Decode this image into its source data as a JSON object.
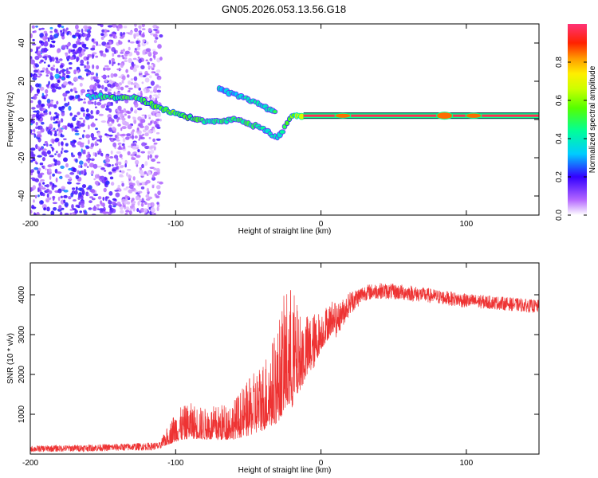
{
  "title": "GN05.2026.053.13.56.G18",
  "chart_data": [
    {
      "type": "heatmap",
      "title": "GN05.2026.053.13.56.G18",
      "xlabel": "Height of straight line (km)",
      "ylabel": "Frequency (Hz)",
      "xlim": [
        -200,
        150
      ],
      "ylim": [
        -50,
        50
      ],
      "xticks": [
        -200,
        -100,
        0,
        100
      ],
      "yticks": [
        -40,
        -20,
        0,
        20,
        40
      ],
      "colorbar": {
        "label": "Normalized spectral amplitude",
        "range": [
          0,
          1
        ],
        "ticks": [
          0.0,
          0.2,
          0.4,
          0.6,
          0.8
        ]
      },
      "noise_region": {
        "x_range": [
          -200,
          -110
        ],
        "y_range": [
          -50,
          50
        ],
        "amplitude": 0.15
      },
      "signal_track": [
        {
          "x": -160,
          "y": 12,
          "amp": 0.35
        },
        {
          "x": -150,
          "y": 12,
          "amp": 0.45
        },
        {
          "x": -140,
          "y": 11,
          "amp": 0.5
        },
        {
          "x": -130,
          "y": 12,
          "amp": 0.45
        },
        {
          "x": -120,
          "y": 9,
          "amp": 0.5
        },
        {
          "x": -110,
          "y": 6,
          "amp": 0.55
        },
        {
          "x": -100,
          "y": 3,
          "amp": 0.55
        },
        {
          "x": -90,
          "y": 1,
          "amp": 0.5
        },
        {
          "x": -80,
          "y": -1,
          "amp": 0.45
        },
        {
          "x": -70,
          "y": -1,
          "amp": 0.45
        },
        {
          "x": -60,
          "y": 0,
          "amp": 0.45
        },
        {
          "x": -50,
          "y": -2,
          "amp": 0.45
        },
        {
          "x": -40,
          "y": -5,
          "amp": 0.4
        },
        {
          "x": -30,
          "y": -10,
          "amp": 0.35
        },
        {
          "x": -20,
          "y": 2,
          "amp": 0.55
        },
        {
          "x": -10,
          "y": 2,
          "amp": 0.8
        },
        {
          "x": 0,
          "y": 2,
          "amp": 0.95
        },
        {
          "x": 50,
          "y": 2,
          "amp": 0.95
        },
        {
          "x": 90,
          "y": 2,
          "amp": 1.0
        },
        {
          "x": 150,
          "y": 2,
          "amp": 0.95
        }
      ],
      "secondary_track": [
        {
          "x": -70,
          "y": 16,
          "amp": 0.35
        },
        {
          "x": -55,
          "y": 12,
          "amp": 0.35
        },
        {
          "x": -40,
          "y": 7,
          "amp": 0.4
        },
        {
          "x": -30,
          "y": 3,
          "amp": 0.45
        }
      ]
    },
    {
      "type": "line",
      "xlabel": "Height of straight line (km)",
      "ylabel": "SNR (10 * v/v)",
      "xlim": [
        -200,
        150
      ],
      "ylim": [
        0,
        4800
      ],
      "xticks": [
        -200,
        -100,
        0,
        100
      ],
      "yticks": [
        1000,
        2000,
        3000,
        4000
      ],
      "series": [
        {
          "name": "SNR",
          "color": "#ee3333",
          "envelope_x": [
            -200,
            -150,
            -110,
            -100,
            -90,
            -80,
            -70,
            -60,
            -50,
            -40,
            -30,
            -25,
            -20,
            -15,
            -10,
            -5,
            0,
            10,
            20,
            30,
            40,
            60,
            80,
            100,
            120,
            150
          ],
          "envelope_y": [
            130,
            160,
            200,
            450,
            550,
            500,
            500,
            550,
            700,
            900,
            1200,
            1600,
            1700,
            1900,
            2200,
            2400,
            2800,
            3300,
            3800,
            4050,
            4100,
            4050,
            3950,
            3850,
            3800,
            3700
          ],
          "noise_amplitude": [
            80,
            90,
            100,
            400,
            450,
            400,
            450,
            500,
            700,
            900,
            1200,
            1500,
            1600,
            1000,
            800,
            700,
            500,
            400,
            300,
            200,
            200,
            200,
            180,
            180,
            170,
            170
          ]
        }
      ]
    }
  ]
}
